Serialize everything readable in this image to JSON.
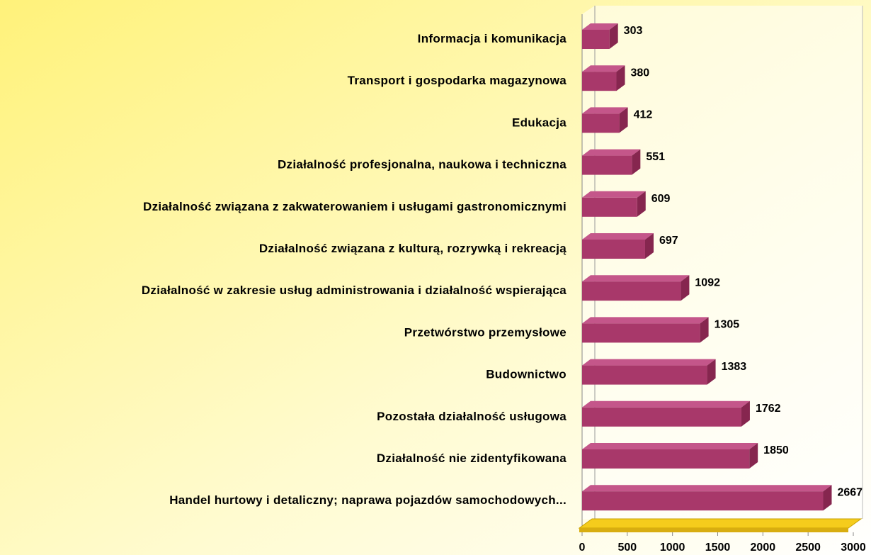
{
  "chart_data": {
    "type": "bar3d_horizontal",
    "categories": [
      "Informacja i komunikacja",
      "Transport i gospodarka magazynowa",
      "Edukacja",
      "Działalność profesjonalna, naukowa i techniczna",
      "Działalność związana z zakwaterowaniem i usługami gastronomicznymi",
      "Działalność  związana z kulturą, rozrywką i rekreacją",
      "Działalność w zakresie usług administrowania i działalność wspierająca",
      "Przetwórstwo przemysłowe",
      "Budownictwo",
      "Pozostała działalność usługowa",
      "Działalność nie zidentyfikowana",
      "Handel hurtowy i detaliczny; naprawa pojazdów samochodowych..."
    ],
    "values": [
      303,
      380,
      412,
      551,
      609,
      697,
      1092,
      1305,
      1383,
      1762,
      1850,
      2667
    ],
    "color": "#a8386a",
    "xlim": [
      0,
      3000
    ],
    "xticks": [
      0,
      500,
      1000,
      1500,
      2000,
      2500,
      3000
    ]
  }
}
